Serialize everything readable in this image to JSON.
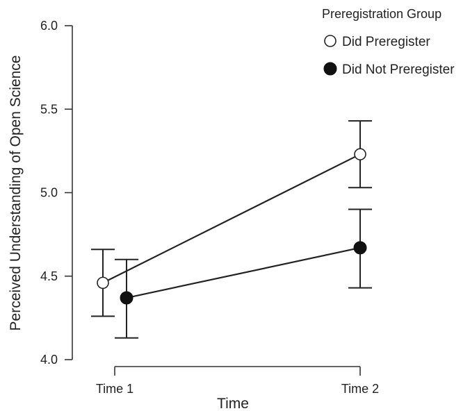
{
  "chart_data": {
    "type": "line",
    "title": "",
    "xlabel": "Time",
    "ylabel": "Perceived Understanding of Open Science",
    "categories": [
      "Time 1",
      "Time 2"
    ],
    "ylim": [
      4.0,
      6.0
    ],
    "yticks": [
      "4.0",
      "4.5",
      "5.0",
      "5.5",
      "6.0"
    ],
    "ytick_values": [
      4.0,
      4.5,
      5.0,
      5.5,
      6.0
    ],
    "grid": false,
    "legend": {
      "title": "Preregistration Group",
      "placement": "top-right"
    },
    "series": [
      {
        "name": "Did Preregister",
        "marker": "open-circle",
        "values": [
          4.46,
          5.23
        ],
        "error_low": [
          4.26,
          5.03
        ],
        "error_high": [
          4.66,
          5.43
        ]
      },
      {
        "name": "Did Not Preregister",
        "marker": "filled-circle",
        "values": [
          4.37,
          4.67
        ],
        "error_low": [
          4.13,
          4.43
        ],
        "error_high": [
          4.6,
          4.9
        ]
      }
    ],
    "colors": {
      "line": "#222222",
      "open_marker_fill": "#ffffff",
      "filled_marker_fill": "#111111"
    }
  }
}
